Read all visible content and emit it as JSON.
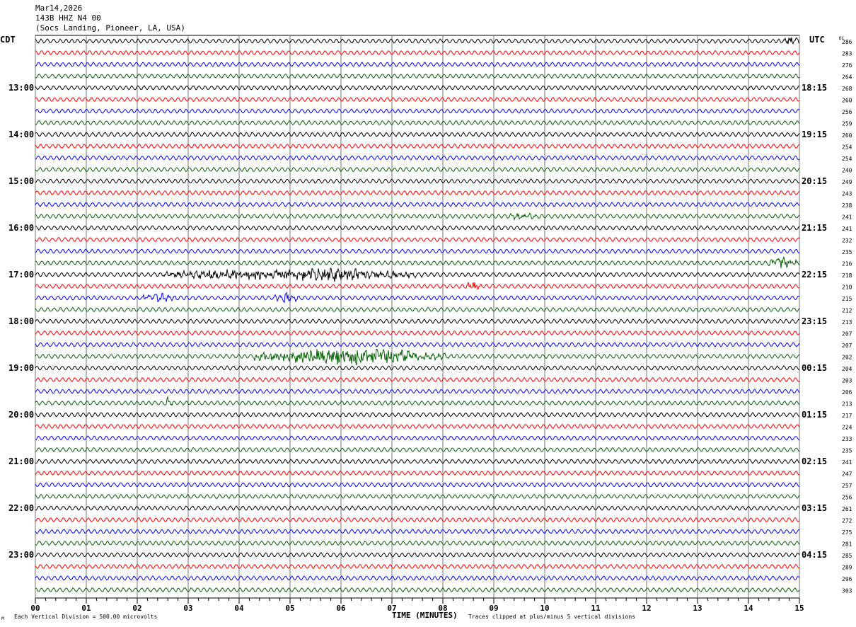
{
  "header": {
    "date": "Mar14,2026",
    "station": "143B HHZ N4 00",
    "location": "(Socs Landing, Pioneer, LA, USA)"
  },
  "left_tz": "CDT",
  "right_tz": "UTC",
  "dc_label": "DC",
  "footer": {
    "scale": "Each Vertical Division =  500.00 microvolts",
    "xlabel": "TIME (MINUTES)",
    "clip_note": "Traces clipped at plus/minus 5 vertical divisions",
    "corner_mark": "M"
  },
  "chart_data": {
    "type": "line",
    "title": "143B HHZ N4 00 helicorder",
    "xlabel": "TIME (MINUTES)",
    "xlim": [
      0,
      15
    ],
    "x_ticks": [
      "00",
      "01",
      "02",
      "03",
      "04",
      "05",
      "06",
      "07",
      "08",
      "09",
      "10",
      "11",
      "12",
      "13",
      "14",
      "15"
    ],
    "trace_minutes": 15,
    "trace_count": 48,
    "trace_colors": [
      "#000000",
      "#ff0000",
      "#0000ff",
      "#006400"
    ],
    "left_labels": [
      "13:00",
      "14:00",
      "15:00",
      "16:00",
      "17:00",
      "18:00",
      "19:00",
      "20:00",
      "21:00",
      "22:00",
      "23:00"
    ],
    "right_labels": [
      "18:15",
      "19:15",
      "20:15",
      "21:15",
      "22:15",
      "23:15",
      "00:15",
      "01:15",
      "02:15",
      "03:15",
      "04:15"
    ],
    "dc_values": [
      286,
      283,
      276,
      264,
      268,
      260,
      256,
      259,
      260,
      254,
      254,
      240,
      249,
      243,
      238,
      241,
      241,
      232,
      235,
      216,
      218,
      210,
      215,
      212,
      213,
      207,
      207,
      202,
      204,
      203,
      206,
      213,
      217,
      224,
      233,
      235,
      241,
      247,
      257,
      256,
      261,
      272,
      275,
      281,
      285,
      289,
      296,
      303
    ],
    "events": [
      {
        "trace": 20,
        "start_min": 2.5,
        "peak_min": 6.0,
        "end_min": 7.6,
        "amplitude": 2.2
      },
      {
        "trace": 22,
        "start_min": 2.1,
        "peak_min": 2.4,
        "end_min": 2.8,
        "amplitude": 1.6
      },
      {
        "trace": 22,
        "start_min": 4.7,
        "peak_min": 4.9,
        "end_min": 5.2,
        "amplitude": 1.5
      },
      {
        "trace": 27,
        "start_min": 4.3,
        "peak_min": 6.3,
        "end_min": 8.2,
        "amplitude": 3.0
      },
      {
        "trace": 19,
        "start_min": 14.4,
        "peak_min": 14.7,
        "end_min": 15.0,
        "amplitude": 2.0
      },
      {
        "trace": 15,
        "start_min": 9.3,
        "peak_min": 9.5,
        "end_min": 10.0,
        "amplitude": 1.0
      },
      {
        "trace": 31,
        "start_min": 2.55,
        "peak_min": 2.6,
        "end_min": 2.7,
        "amplitude": 2.0
      },
      {
        "trace": 21,
        "start_min": 8.4,
        "peak_min": 8.6,
        "end_min": 8.8,
        "amplitude": 1.3
      },
      {
        "trace": 0,
        "start_min": 14.7,
        "peak_min": 14.85,
        "end_min": 15.0,
        "amplitude": 1.6
      }
    ]
  }
}
